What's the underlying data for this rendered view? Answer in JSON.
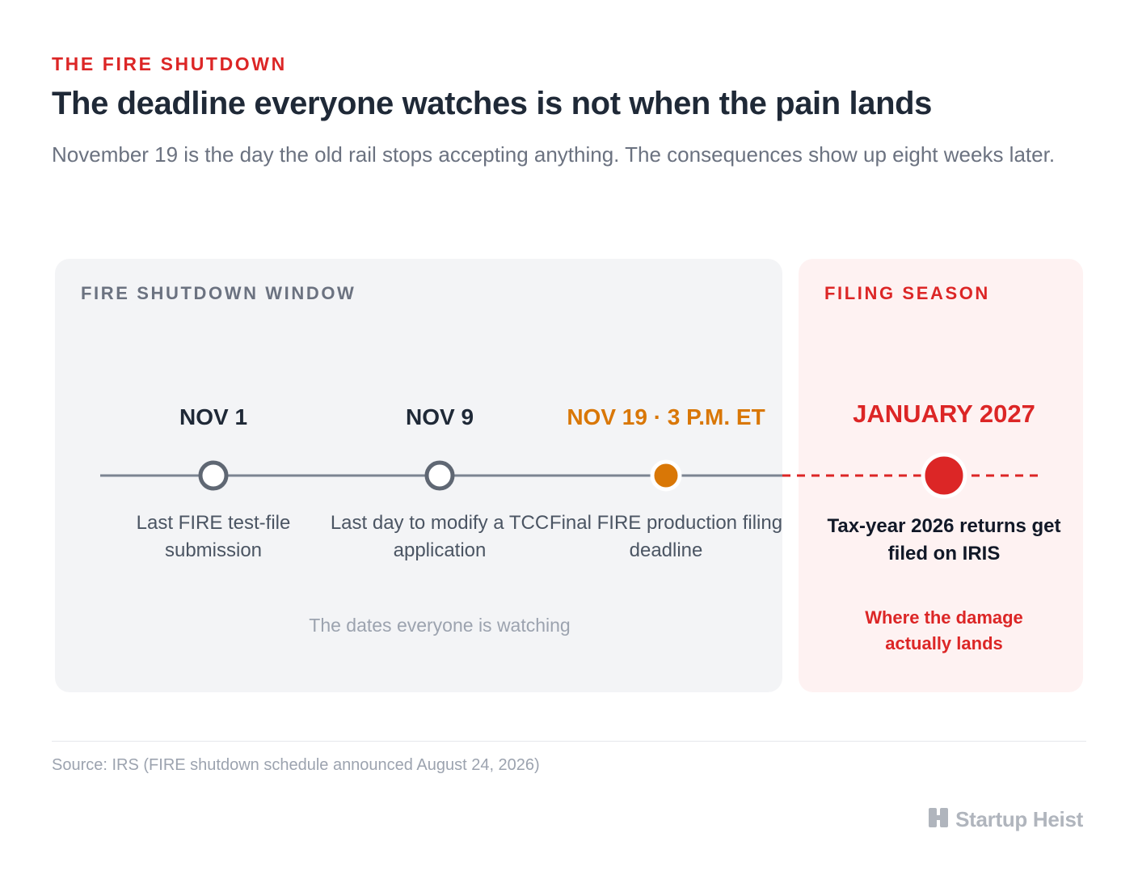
{
  "header": {
    "kicker": "THE FIRE SHUTDOWN",
    "title": "The deadline everyone watches is not when the pain lands",
    "subtitle": "November 19 is the day the old rail stops accepting anything. The consequences show up eight weeks later."
  },
  "panels": {
    "shutdown_label": "FIRE SHUTDOWN WINDOW",
    "filing_label": "FILING SEASON",
    "watching_note": "The dates everyone is watching",
    "damage_note": "Where the damage actually lands"
  },
  "timeline": [
    {
      "date": "NOV 1",
      "description": "Last FIRE test-file submission",
      "marker": "hollow"
    },
    {
      "date": "NOV 9",
      "description": "Last day to modify a TCC application",
      "marker": "hollow"
    },
    {
      "date": "NOV 19 · 3 P.M. ET",
      "description": "Final FIRE production filing deadline",
      "marker": "filled-orange"
    },
    {
      "date": "JANUARY 2027",
      "description": "Tax-year 2026 returns get filed on IRIS",
      "marker": "filled-red"
    }
  ],
  "colors": {
    "accent_red": "#dc2626",
    "accent_orange": "#d97706",
    "line_gray": "#7b8491",
    "text_dark": "#1f2937"
  },
  "footer": {
    "source": "Source: IRS (FIRE shutdown schedule announced August 24, 2026)",
    "brand": "Startup Heist",
    "brand_icon": "building-icon"
  }
}
